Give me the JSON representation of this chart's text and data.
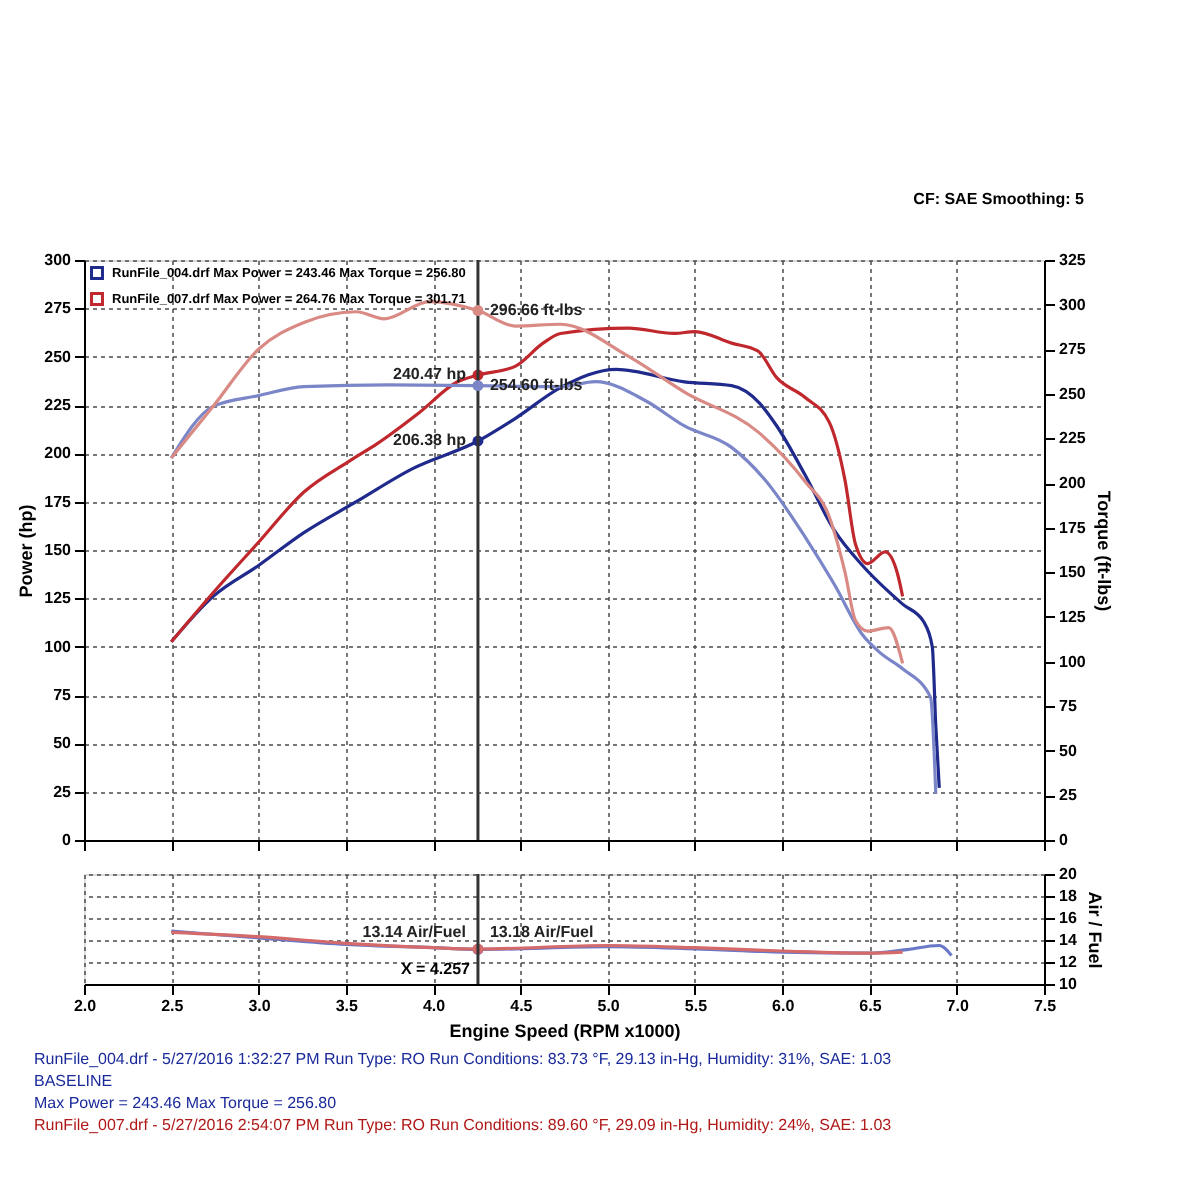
{
  "chart_data": [
    {
      "type": "line",
      "ylabel": "Power (hp)",
      "y2label": "Torque (ft-lbs)",
      "xlim": [
        2,
        7.5
      ],
      "xticks": [
        2,
        2.5,
        3,
        3.5,
        4,
        4.5,
        5,
        5.5,
        6,
        6.5,
        7,
        7.5
      ],
      "ylim": [
        0,
        300
      ],
      "yticks": [
        0,
        25,
        50,
        75,
        100,
        125,
        150,
        175,
        200,
        225,
        250,
        275,
        300
      ],
      "y2lim": [
        0,
        325
      ],
      "y2ticks": [
        0,
        25,
        50,
        75,
        100,
        125,
        150,
        175,
        200,
        225,
        250,
        275,
        300,
        325
      ],
      "tick_labels": "y",
      "grid": true,
      "legend": "top left",
      "line_style": "solid",
      "annotations": [
        "CF: SAE  Smoothing: 5"
      ],
      "ref_lines": [
        {
          "axis": "x",
          "value": 4.257,
          "color": "#333333"
        }
      ],
      "series": [
        {
          "name": "RunFile_004.drf Max Power = 243.46    Max Torque = 256.80",
          "color": "#1f2a8c",
          "x": [
            2.5,
            2.74,
            3.0,
            3.26,
            3.56,
            3.88,
            4.257,
            4.47,
            4.73,
            5.05,
            5.44,
            5.71,
            5.87,
            5.97,
            6.13,
            6.3,
            6.46,
            6.69,
            6.81,
            6.86,
            6.88,
            6.9
          ],
          "values": [
            102.5,
            126,
            142,
            159,
            175,
            192,
            206.38,
            218,
            234,
            243.46,
            237,
            235,
            226,
            214,
            189,
            160,
            142,
            122,
            113,
            100,
            59,
            27
          ],
          "value_labels": [
            null,
            null,
            null,
            null,
            null,
            null,
            "206.38 hp",
            null,
            null,
            null,
            null,
            null,
            null,
            null,
            null,
            null,
            null,
            null,
            null,
            null,
            null,
            null
          ]
        },
        {
          "name": "RunFile_007.drf Max Power = 264.76    Max Torque = 301.71",
          "color": "#c0282d",
          "x": [
            2.5,
            2.77,
            3.0,
            3.26,
            3.52,
            3.68,
            3.92,
            4.14,
            4.257,
            4.47,
            4.63,
            4.73,
            5.12,
            5.38,
            5.5,
            5.71,
            5.86,
            5.97,
            6.13,
            6.27,
            6.36,
            6.42,
            6.49,
            6.59,
            6.66,
            6.69
          ],
          "values": [
            102.5,
            131,
            154,
            180,
            196,
            205,
            221,
            237,
            240.47,
            245,
            257,
            262,
            264.76,
            262,
            263,
            257,
            253,
            239,
            229,
            216,
            186,
            153,
            143,
            149,
            138,
            126
          ],
          "value_labels": [
            null,
            null,
            null,
            null,
            null,
            null,
            null,
            null,
            "240.47 hp",
            null,
            null,
            null,
            null,
            null,
            null,
            null,
            null,
            null,
            null,
            null,
            null,
            null,
            null,
            null,
            null,
            null
          ]
        },
        {
          "color": "#7b86c8",
          "axis": "y2",
          "x": [
            2.5,
            2.74,
            3.0,
            3.26,
            3.75,
            4.257,
            4.73,
            4.93,
            5.22,
            5.44,
            5.71,
            5.9,
            6.13,
            6.3,
            6.46,
            6.56,
            6.69,
            6.85,
            6.88
          ],
          "values": [
            214,
            243,
            249,
            254,
            255,
            254.6,
            254,
            256.8,
            246,
            232,
            220,
            202,
            170,
            143,
            115,
            105,
            96,
            80,
            26
          ],
          "value_labels": [
            null,
            null,
            null,
            null,
            null,
            "254.60 ft-lbs",
            null,
            null,
            null,
            null,
            null,
            null,
            null,
            null,
            null,
            null,
            null,
            null,
            null
          ]
        },
        {
          "color": "#d98a84",
          "axis": "y2",
          "x": [
            2.5,
            2.74,
            3.0,
            3.26,
            3.56,
            3.72,
            3.98,
            4.257,
            4.47,
            4.73,
            5.12,
            5.44,
            5.87,
            6.13,
            6.27,
            6.36,
            6.42,
            6.49,
            6.61,
            6.69
          ],
          "values": [
            214,
            243,
            275,
            290,
            296,
            292,
            301.71,
            296.66,
            288,
            289,
            271,
            251,
            228,
            201,
            181,
            150,
            123,
            117,
            119,
            99
          ],
          "value_labels": [
            null,
            null,
            null,
            null,
            null,
            null,
            null,
            "296.66 ft-lbs",
            null,
            null,
            null,
            null,
            null,
            null,
            null,
            null,
            null,
            null,
            null,
            null
          ]
        }
      ]
    },
    {
      "type": "line",
      "xlabel": "Engine Speed (RPM x1000)",
      "y2label": "Air / Fuel",
      "xlim": [
        2,
        7.5
      ],
      "xticks": [
        {
          "value": 2,
          "label": "2.0"
        },
        2.5,
        {
          "value": 3,
          "label": "3.0"
        },
        3.5,
        {
          "value": 4,
          "label": "4.0"
        },
        4.5,
        {
          "value": 5,
          "label": "5.0"
        },
        5.5,
        {
          "value": 6,
          "label": "6.0"
        },
        6.5,
        {
          "value": 7,
          "label": "7.0"
        },
        7.5
      ],
      "y2lim": [
        10,
        20
      ],
      "y2ticks": [
        10,
        12,
        14,
        16,
        18,
        20
      ],
      "grid": true,
      "line_style": "solid",
      "ref_lines": [
        {
          "axis": "x",
          "value": 4.257,
          "label": "X = 4.257",
          "color": "#333333"
        }
      ],
      "annotations": [
        "RunFile_004.drf - 5/27/2016 1:32:27 PM  Run Type: RO  Run Conditions: 83.73 °F, 29.13 in-Hg,  Humidity:  31%, SAE: 1.03",
        "BASELINE",
        "Max Power = 243.46  Max Torque = 256.80",
        "RunFile_007.drf - 5/27/2016 2:54:07 PM  Run Type: RO  Run Conditions: 89.60 °F, 29.09 in-Hg,  Humidity:  24%, SAE: 1.03"
      ],
      "series": [
        {
          "color": "#6a78c8",
          "axis": "y2",
          "x": [
            2.5,
            3.0,
            3.5,
            4.0,
            4.257,
            5.0,
            5.5,
            6.0,
            6.5,
            6.7,
            6.9,
            6.97
          ],
          "values": [
            14.8,
            14.2,
            13.6,
            13.3,
            13.14,
            13.4,
            13.2,
            12.9,
            12.8,
            13.1,
            13.5,
            12.6
          ],
          "value_labels": [
            null,
            null,
            null,
            null,
            "13.14 Air/Fuel",
            null,
            null,
            null,
            null,
            null,
            null,
            null
          ]
        },
        {
          "color": "#d46a6a",
          "axis": "y2",
          "x": [
            2.5,
            3.0,
            3.5,
            4.0,
            4.257,
            5.0,
            5.5,
            6.0,
            6.5,
            6.69
          ],
          "values": [
            14.7,
            14.3,
            13.7,
            13.3,
            13.18,
            13.5,
            13.3,
            13.0,
            12.8,
            12.9
          ],
          "value_labels": [
            null,
            null,
            null,
            null,
            "13.18 Air/Fuel",
            null,
            null,
            null,
            null,
            null
          ]
        }
      ]
    }
  ]
}
